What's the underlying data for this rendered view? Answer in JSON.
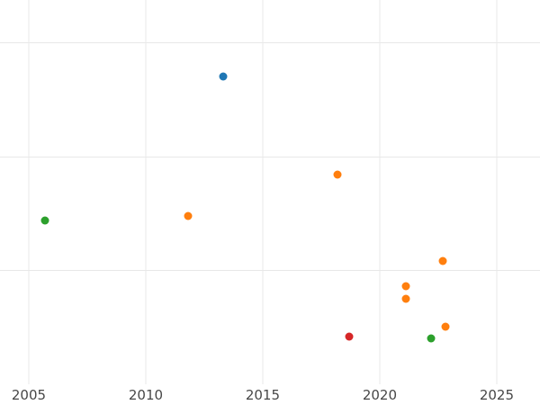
{
  "chart_data": {
    "type": "scatter",
    "title": "",
    "xlabel": "",
    "ylabel": "",
    "legend": "none",
    "grid": true,
    "background_color": "#ffffff",
    "gridline_color": "#e8e8e8",
    "tick_label_color": "#474747",
    "marker_size_px": 9,
    "x_ticks": [
      2005,
      2010,
      2015,
      2020,
      2025
    ],
    "x_tick_labels": [
      "2005",
      "2010",
      "2015",
      "2020",
      "2025"
    ],
    "xlim": [
      2003.77,
      2026.85
    ],
    "ylim": [
      -0.18,
      3.37
    ],
    "y_gridlines": [
      1,
      2,
      3
    ],
    "y_axis_note": "No y-axis tick labels visible in image (cropped); y values estimated in gridline units where 0 = bottom plot edge and each horizontal gridline = +1 unit",
    "series": [
      {
        "name": "blue",
        "color": "#1f77b4",
        "points": [
          {
            "x": 2013.3,
            "y": 2.7
          }
        ]
      },
      {
        "name": "orange",
        "color": "#ff7f0e",
        "points": [
          {
            "x": 2018.2,
            "y": 1.84
          },
          {
            "x": 2011.8,
            "y": 1.48
          },
          {
            "x": 2022.7,
            "y": 1.08
          },
          {
            "x": 2021.1,
            "y": 0.86
          },
          {
            "x": 2021.1,
            "y": 0.75
          },
          {
            "x": 2022.8,
            "y": 0.51
          }
        ]
      },
      {
        "name": "green",
        "color": "#2ca02c",
        "points": [
          {
            "x": 2005.7,
            "y": 1.44
          },
          {
            "x": 2022.2,
            "y": 0.4
          }
        ]
      },
      {
        "name": "red",
        "color": "#d62728",
        "points": [
          {
            "x": 2018.7,
            "y": 0.42
          }
        ]
      }
    ]
  }
}
